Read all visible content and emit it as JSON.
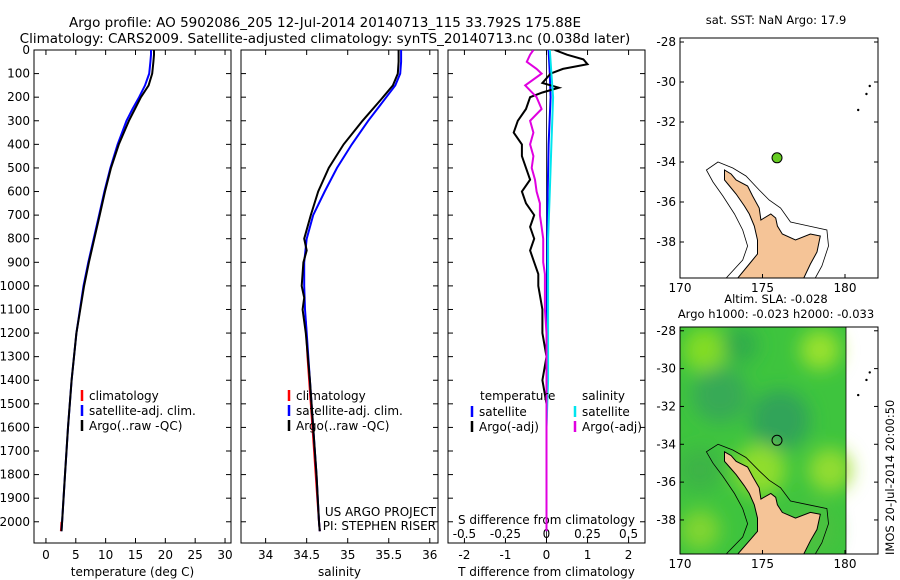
{
  "header": {
    "line1": "Argo profile: AO 5902086_205 12-Jul-2014 20140713_115 33.792S 175.88E",
    "line2": "Climatology: CARS2009. Satellite-adjusted climatology: synTS_20140713.nc (0.038d later)"
  },
  "colors": {
    "climatology": "#ff0000",
    "satellite": "#0000ff",
    "argo": "#000000",
    "salinity_satellite": "#00e5ee",
    "salinity_argo": "#e000e0",
    "land": "#f5c497",
    "sla_ocean": "#3ec43e",
    "argo_marker_map": "#66cc22"
  },
  "chart_data": [
    {
      "type": "line",
      "panel": "temperature",
      "xlabel": "temperature (deg C)",
      "xlim": [
        -2,
        31
      ],
      "xticks": [
        0,
        5,
        10,
        15,
        20,
        25,
        30
      ],
      "ylim": [
        2090,
        0
      ],
      "yticks": [
        0,
        100,
        200,
        300,
        400,
        500,
        600,
        700,
        800,
        900,
        1000,
        1100,
        1200,
        1300,
        1400,
        1500,
        1600,
        1700,
        1800,
        1900,
        2000
      ],
      "legend": [
        "climatology",
        "satellite-adj. clim.",
        "Argo(..raw -QC)"
      ],
      "series": [
        {
          "name": "climatology",
          "depth": [
            2000,
            2040
          ],
          "values": [
            2.6,
            2.5
          ]
        },
        {
          "name": "satellite-adj. clim.",
          "depth": [
            0,
            20,
            50,
            100,
            150,
            200,
            250,
            300,
            400,
            500,
            600,
            700,
            800,
            900,
            1000,
            1200,
            1400,
            1600,
            1800,
            2000,
            2040
          ],
          "values": [
            17.6,
            17.6,
            17.5,
            17.3,
            16.6,
            15.6,
            14.5,
            13.5,
            12.0,
            10.8,
            9.8,
            8.9,
            8.0,
            7.1,
            6.3,
            5.1,
            4.3,
            3.7,
            3.2,
            2.7,
            2.6
          ]
        },
        {
          "name": "Argo(..raw -QC)",
          "depth": [
            0,
            20,
            50,
            100,
            150,
            200,
            250,
            300,
            400,
            500,
            600,
            700,
            800,
            900,
            1000,
            1200,
            1400,
            1600,
            1800,
            2000,
            2040
          ],
          "values": [
            18.1,
            18.1,
            18.0,
            17.8,
            17.2,
            15.9,
            14.9,
            13.9,
            12.2,
            10.9,
            9.9,
            9.0,
            8.1,
            7.2,
            6.4,
            5.1,
            4.3,
            3.7,
            3.2,
            2.7,
            2.6
          ]
        }
      ]
    },
    {
      "type": "line",
      "panel": "salinity",
      "xlabel": "salinity",
      "xlim": [
        33.7,
        36.1
      ],
      "xticks": [
        34,
        34.5,
        35,
        35.5,
        36
      ],
      "ylim": [
        2090,
        0
      ],
      "legend": [
        "climatology",
        "satellite-adj. clim.",
        "Argo(..raw -QC)"
      ],
      "annotation": [
        "US ARGO PROJECT",
        "PI: STEPHEN RISER"
      ],
      "series": [
        {
          "name": "climatology",
          "depth": [
            1150,
            1300,
            1500,
            1700,
            1900,
            2000,
            2040
          ],
          "values": [
            34.49,
            34.51,
            34.55,
            34.59,
            34.63,
            34.65,
            34.66
          ]
        },
        {
          "name": "satellite-adj. clim.",
          "depth": [
            0,
            50,
            100,
            150,
            200,
            300,
            400,
            500,
            600,
            700,
            800,
            900,
            1000,
            1100,
            1200,
            1400,
            1600,
            1800,
            2000,
            2040
          ],
          "values": [
            35.65,
            35.65,
            35.64,
            35.58,
            35.47,
            35.25,
            35.05,
            34.87,
            34.72,
            34.58,
            34.5,
            34.47,
            34.47,
            34.48,
            34.5,
            34.54,
            34.58,
            34.62,
            34.65,
            34.66
          ]
        },
        {
          "name": "Argo(..raw -QC)",
          "depth": [
            0,
            50,
            100,
            150,
            200,
            300,
            400,
            500,
            600,
            700,
            800,
            850,
            900,
            1000,
            1050,
            1100,
            1200,
            1400,
            1600,
            1800,
            2000,
            2040
          ],
          "values": [
            35.62,
            35.62,
            35.61,
            35.55,
            35.43,
            35.18,
            34.95,
            34.77,
            34.64,
            34.55,
            34.47,
            34.5,
            34.46,
            34.44,
            34.47,
            34.45,
            34.49,
            34.54,
            34.58,
            34.62,
            34.65,
            34.66
          ]
        }
      ]
    },
    {
      "type": "line",
      "panel": "difference",
      "xlabel": "T difference from climatology",
      "xlabel_top": "S difference from climatology",
      "xlim": [
        -2.4,
        2.4
      ],
      "xticks": [
        -2,
        -1,
        0,
        1,
        2
      ],
      "xticks_top": [
        -0.5,
        -0.25,
        0,
        0.25,
        0.5
      ],
      "ylim": [
        2090,
        0
      ],
      "legend_left_title": "temperature",
      "legend_right_title": "salinity",
      "legend_left": [
        "satellite",
        "Argo(-adj)"
      ],
      "legend_right": [
        "satellite",
        "Argo(-adj)"
      ],
      "series": [
        {
          "name": "temperature satellite",
          "depth": [
            0,
            100,
            200,
            400,
            600,
            800,
            1000,
            1200,
            1400,
            1600,
            1800,
            2000,
            2040
          ],
          "values": [
            0.05,
            0.08,
            0.1,
            0.05,
            0.03,
            0.02,
            0.02,
            0.01,
            0.01,
            0.0,
            0.0,
            0.0,
            0.0
          ]
        },
        {
          "name": "temperature Argo(-adj)",
          "depth": [
            0,
            20,
            40,
            60,
            80,
            100,
            120,
            140,
            160,
            180,
            200,
            250,
            300,
            350,
            400,
            450,
            500,
            550,
            600,
            650,
            700,
            750,
            800,
            850,
            900,
            950,
            1000,
            1100,
            1200,
            1300,
            1400,
            1500,
            1600,
            1700,
            1800,
            1900,
            2000,
            2040
          ],
          "values": [
            0.2,
            0.5,
            0.9,
            1.0,
            0.4,
            0.1,
            0.0,
            -0.1,
            0.3,
            -0.1,
            -0.4,
            -0.5,
            -0.7,
            -0.8,
            -0.6,
            -0.6,
            -0.5,
            -0.4,
            -0.6,
            -0.5,
            -0.3,
            -0.4,
            -0.3,
            -0.4,
            -0.3,
            -0.2,
            -0.2,
            -0.1,
            -0.1,
            0.0,
            -0.1,
            0.0,
            0.0,
            0.0,
            0.0,
            0.0,
            0.0,
            0.0
          ]
        },
        {
          "name": "salinity satellite",
          "depth": [
            0,
            100,
            200,
            400,
            600,
            800,
            1000,
            1200,
            1400,
            1600,
            1800,
            2000,
            2040
          ],
          "values": [
            0.02,
            0.03,
            0.04,
            0.03,
            0.02,
            0.01,
            0.01,
            0.01,
            0.01,
            0.0,
            0.0,
            0.0,
            0.0
          ]
        },
        {
          "name": "salinity Argo(-adj)",
          "depth": [
            0,
            20,
            50,
            80,
            100,
            150,
            200,
            250,
            300,
            350,
            400,
            450,
            500,
            550,
            600,
            650,
            700,
            750,
            800,
            850,
            900,
            950,
            1000,
            1100,
            1200,
            1400,
            1600,
            1800,
            2000,
            2040
          ],
          "values": [
            -0.08,
            -0.1,
            -0.12,
            -0.06,
            -0.03,
            -0.13,
            -0.06,
            -0.03,
            -0.1,
            -0.08,
            -0.1,
            -0.08,
            -0.09,
            -0.07,
            -0.06,
            -0.04,
            -0.04,
            -0.03,
            -0.02,
            -0.02,
            -0.02,
            -0.01,
            -0.01,
            -0.01,
            0.0,
            0.0,
            0.0,
            0.0,
            0.0,
            0.0
          ]
        }
      ]
    },
    {
      "type": "scatter",
      "panel": "sst-map",
      "title": "sat. SST: NaN Argo: 17.9",
      "xlim": [
        170,
        182
      ],
      "ylim": [
        -39.8,
        -27.8
      ],
      "xticks": [
        170,
        175,
        180
      ],
      "yticks": [
        -28,
        -30,
        -32,
        -34,
        -36,
        -38
      ],
      "points": [
        {
          "x": 175.88,
          "y": -33.79
        }
      ]
    },
    {
      "type": "heatmap",
      "panel": "sla-map",
      "title": "Altim. SLA: -0.028",
      "subtitle": "Argo h1000: -0.023 h2000: -0.033",
      "xlim": [
        170,
        182
      ],
      "ylim": [
        -39.8,
        -27.8
      ],
      "xticks": [
        170,
        175,
        180
      ],
      "yticks": [
        -28,
        -30,
        -32,
        -34,
        -36,
        -38
      ],
      "points": [
        {
          "x": 175.88,
          "y": -33.79
        }
      ]
    }
  ],
  "stamp": "IMOS 20-Jul-2014 20:00:50"
}
